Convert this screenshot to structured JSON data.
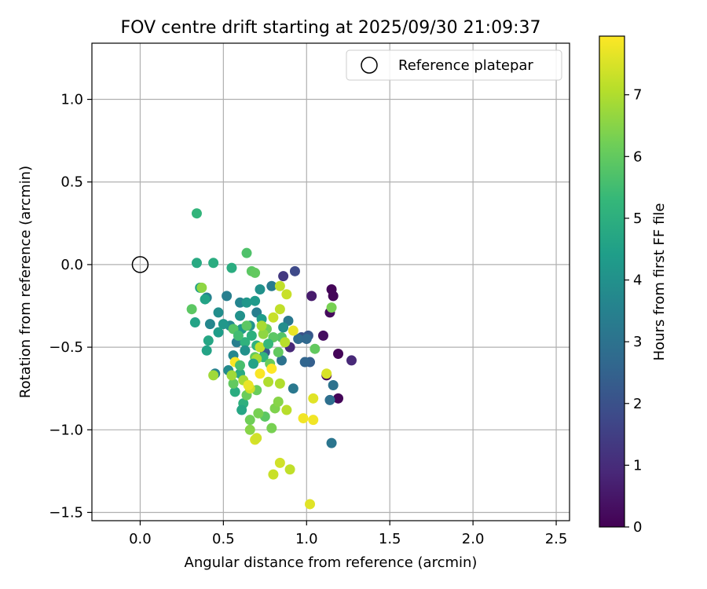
{
  "chart_data": {
    "type": "scatter",
    "title": "FOV centre drift starting at 2025/09/30 21:09:37",
    "xlabel": "Angular distance from reference (arcmin)",
    "ylabel": "Rotation from reference (arcmin)",
    "xlim": [
      -0.29,
      2.58
    ],
    "ylim": [
      -1.55,
      1.34
    ],
    "xticks": [
      0.0,
      0.5,
      1.0,
      1.5,
      2.0,
      2.5
    ],
    "xtick_labels": [
      "0.0",
      "0.5",
      "1.0",
      "1.5",
      "2.0",
      "2.5"
    ],
    "yticks": [
      -1.5,
      -1.0,
      -0.5,
      0.0,
      0.5,
      1.0
    ],
    "ytick_labels": [
      "−1.5",
      "−1.0",
      "−0.5",
      "0.0",
      "0.5",
      "1.0"
    ],
    "grid": true,
    "legend": {
      "position": "top-right",
      "entries": [
        "Reference platepar"
      ]
    },
    "reference_point": {
      "x": 0.0,
      "y": 0.0,
      "label": "Reference platepar"
    },
    "colorbar": {
      "label": "Hours from first FF file",
      "range": [
        0,
        7.95
      ],
      "ticks": [
        0,
        1,
        2,
        3,
        4,
        5,
        6,
        7
      ],
      "tick_labels": [
        "0",
        "1",
        "2",
        "3",
        "4",
        "5",
        "6",
        "7"
      ],
      "colormap": "viridis"
    },
    "colormap_stops": [
      "#440154",
      "#482878",
      "#3e4989",
      "#31688e",
      "#26828e",
      "#1f9e89",
      "#35b779",
      "#6ece58",
      "#b5de2b",
      "#fde725"
    ],
    "series": [
      {
        "name": "FOV centre",
        "points": [
          [
            1.15,
            -0.15,
            0.1
          ],
          [
            1.16,
            -0.19,
            0.1
          ],
          [
            1.19,
            -0.54,
            0.1
          ],
          [
            1.19,
            -0.81,
            0.1
          ],
          [
            1.12,
            -0.67,
            0.2
          ],
          [
            1.14,
            -0.29,
            0.2
          ],
          [
            1.1,
            -0.43,
            0.3
          ],
          [
            1.03,
            -0.19,
            0.6
          ],
          [
            1.27,
            -0.58,
            0.9
          ],
          [
            0.9,
            -0.5,
            0.9
          ],
          [
            0.86,
            -0.07,
            1.3
          ],
          [
            0.93,
            -0.04,
            1.8
          ],
          [
            0.97,
            -0.44,
            2.0
          ],
          [
            1.01,
            -0.43,
            2.2
          ],
          [
            0.75,
            -0.53,
            2.2
          ],
          [
            1.02,
            -0.59,
            2.4
          ],
          [
            0.99,
            -0.59,
            2.6
          ],
          [
            0.95,
            -0.45,
            2.8
          ],
          [
            1.0,
            -0.45,
            2.7
          ],
          [
            1.14,
            -0.82,
            2.9
          ],
          [
            1.16,
            -0.73,
            3.0
          ],
          [
            1.15,
            -1.08,
            3.1
          ],
          [
            0.85,
            -0.58,
            3.0
          ],
          [
            0.89,
            -0.34,
            3.2
          ],
          [
            0.79,
            -0.13,
            3.3
          ],
          [
            0.92,
            -0.75,
            3.2
          ],
          [
            0.7,
            -0.29,
            3.4
          ],
          [
            0.6,
            -0.23,
            3.6
          ],
          [
            0.58,
            -0.47,
            3.4
          ],
          [
            0.52,
            -0.19,
            3.4
          ],
          [
            0.4,
            -0.2,
            3.5
          ],
          [
            0.42,
            -0.36,
            3.7
          ],
          [
            0.47,
            -0.29,
            3.9
          ],
          [
            0.54,
            -0.37,
            3.8
          ],
          [
            0.56,
            -0.55,
            3.7
          ],
          [
            0.45,
            -0.66,
            3.5
          ],
          [
            0.53,
            -0.64,
            3.8
          ],
          [
            0.6,
            -0.31,
            4.0
          ],
          [
            0.66,
            -0.37,
            4.1
          ],
          [
            0.72,
            -0.15,
            4.0
          ],
          [
            0.64,
            -0.23,
            4.2
          ],
          [
            0.69,
            -0.22,
            4.3
          ],
          [
            0.73,
            -0.33,
            4.4
          ],
          [
            0.61,
            -0.39,
            4.3
          ],
          [
            0.36,
            -0.14,
            4.5
          ],
          [
            0.33,
            -0.35,
            4.6
          ],
          [
            0.39,
            -0.21,
            4.6
          ],
          [
            0.34,
            0.01,
            4.8
          ],
          [
            0.44,
            0.01,
            4.9
          ],
          [
            0.55,
            -0.02,
            4.9
          ],
          [
            0.41,
            -0.46,
            4.7
          ],
          [
            0.4,
            -0.52,
            4.6
          ],
          [
            0.6,
            -0.66,
            4.8
          ],
          [
            0.57,
            -0.77,
            4.9
          ],
          [
            0.62,
            -0.84,
            5.0
          ],
          [
            0.61,
            -0.88,
            4.7
          ],
          [
            0.67,
            -0.43,
            5.0
          ],
          [
            0.7,
            -0.49,
            5.1
          ],
          [
            0.74,
            -0.56,
            5.2
          ],
          [
            0.63,
            -0.47,
            5.1
          ],
          [
            0.34,
            0.31,
            5.2
          ],
          [
            0.64,
            0.07,
            5.7
          ],
          [
            0.67,
            -0.04,
            5.9
          ],
          [
            0.69,
            -0.05,
            6.0
          ],
          [
            0.31,
            -0.27,
            5.9
          ],
          [
            0.56,
            -0.39,
            5.8
          ],
          [
            0.64,
            -0.37,
            5.9
          ],
          [
            0.69,
            -0.56,
            6.0
          ],
          [
            0.78,
            -0.6,
            6.1
          ],
          [
            0.85,
            -0.44,
            5.8
          ],
          [
            0.8,
            -0.44,
            5.9
          ],
          [
            0.83,
            -0.53,
            6.0
          ],
          [
            0.76,
            -0.39,
            6.2
          ],
          [
            0.56,
            -0.72,
            6.0
          ],
          [
            0.64,
            -0.79,
            6.1
          ],
          [
            0.7,
            -0.76,
            6.1
          ],
          [
            0.75,
            -0.92,
            5.9
          ],
          [
            0.79,
            -0.99,
            6.3
          ],
          [
            0.66,
            -0.94,
            6.2
          ],
          [
            0.66,
            -1.0,
            6.5
          ],
          [
            0.71,
            -0.9,
            6.3
          ],
          [
            0.81,
            -0.87,
            6.4
          ],
          [
            0.83,
            -0.83,
            6.5
          ],
          [
            1.05,
            -0.51,
            6.0
          ],
          [
            1.15,
            -0.26,
            6.3
          ],
          [
            0.37,
            -0.14,
            6.6
          ],
          [
            0.44,
            -0.67,
            6.8
          ],
          [
            0.55,
            -0.67,
            6.8
          ],
          [
            0.62,
            -0.7,
            6.9
          ],
          [
            0.7,
            -0.57,
            6.9
          ],
          [
            0.77,
            -0.71,
            7.0
          ],
          [
            0.84,
            -0.72,
            7.0
          ],
          [
            0.88,
            -0.88,
            7.1
          ],
          [
            0.84,
            -0.13,
            7.2
          ],
          [
            0.88,
            -0.18,
            7.3
          ],
          [
            0.84,
            -0.27,
            7.2
          ],
          [
            0.87,
            -0.47,
            7.1
          ],
          [
            0.8,
            -0.32,
            7.3
          ],
          [
            0.72,
            -0.5,
            7.2
          ],
          [
            0.66,
            -0.75,
            7.4
          ],
          [
            0.69,
            -1.06,
            7.5
          ],
          [
            0.7,
            -1.05,
            7.4
          ],
          [
            0.84,
            -1.2,
            7.4
          ],
          [
            0.8,
            -1.27,
            7.3
          ],
          [
            0.9,
            -1.24,
            7.2
          ],
          [
            1.02,
            -1.45,
            7.6
          ],
          [
            1.12,
            -0.66,
            7.5
          ],
          [
            1.04,
            -0.81,
            7.6
          ],
          [
            0.92,
            -0.4,
            7.7
          ],
          [
            0.98,
            -0.93,
            7.8
          ],
          [
            1.04,
            -0.94,
            7.8
          ],
          [
            0.72,
            -0.66,
            7.9
          ],
          [
            0.79,
            -0.63,
            7.95
          ],
          [
            0.57,
            -0.59,
            7.9
          ],
          [
            0.65,
            -0.73,
            7.7
          ],
          [
            0.74,
            -0.42,
            6.6
          ],
          [
            0.59,
            -0.43,
            5.5
          ],
          [
            0.5,
            -0.36,
            4.2
          ],
          [
            0.47,
            -0.41,
            4.4
          ],
          [
            0.63,
            -0.52,
            4.0
          ],
          [
            0.68,
            -0.6,
            4.6
          ],
          [
            0.77,
            -0.48,
            5.3
          ],
          [
            0.6,
            -0.61,
            5.6
          ],
          [
            0.73,
            -0.37,
            6.9
          ],
          [
            0.86,
            -0.38,
            3.9
          ]
        ]
      }
    ]
  }
}
